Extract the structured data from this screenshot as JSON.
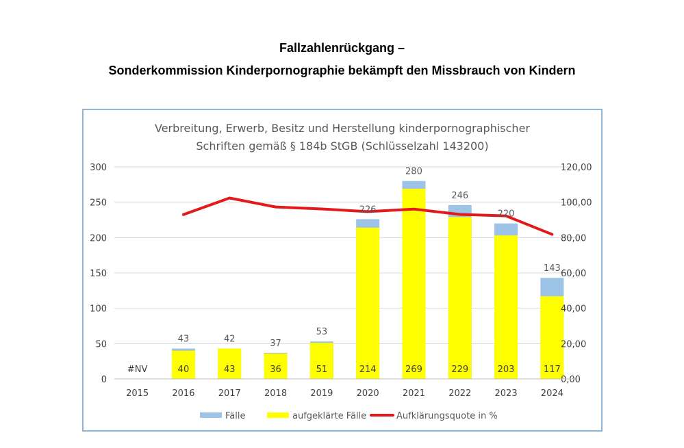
{
  "page": {
    "title_line1": "Fallzahlenrückgang –",
    "title_line2": "Sonderkommission Kinderpornographie bekämpft den Missbrauch von Kindern"
  },
  "colors": {
    "faelle": "#9dc3e6",
    "aufgeklaert": "#ffff00",
    "quote": "#e31a1c",
    "grid": "#d9d9d9",
    "frame": "#8fb4d6"
  },
  "chart_data": {
    "type": "bar",
    "title_line1": "Verbreitung, Erwerb, Besitz und Herstellung kinderpornographischer",
    "title_line2": "Schriften gemäß § 184b StGB (Schlüsselzahl 143200)",
    "categories": [
      "2015",
      "2016",
      "2017",
      "2018",
      "2019",
      "2020",
      "2021",
      "2022",
      "2023",
      "2024"
    ],
    "series": [
      {
        "name": "Fälle",
        "kind": "bar",
        "values": [
          null,
          43,
          42,
          37,
          53,
          226,
          280,
          246,
          220,
          143
        ],
        "labels": [
          "",
          "43",
          "42",
          "37",
          "53",
          "226",
          "280",
          "246",
          "220",
          "143"
        ]
      },
      {
        "name": "aufgeklärte Fälle",
        "kind": "bar",
        "values": [
          null,
          40,
          43,
          36,
          51,
          214,
          269,
          229,
          203,
          117
        ],
        "labels": [
          "#NV",
          "40",
          "43",
          "36",
          "51",
          "214",
          "269",
          "229",
          "203",
          "117"
        ]
      },
      {
        "name": "Aufklärungsquote in %",
        "kind": "line",
        "axis": "right",
        "values": [
          null,
          93.0,
          102.4,
          97.3,
          96.2,
          94.7,
          96.1,
          93.1,
          92.3,
          81.8
        ]
      }
    ],
    "y_left": {
      "min": 0,
      "max": 300,
      "ticks": [
        "0",
        "50",
        "100",
        "150",
        "200",
        "250",
        "300"
      ]
    },
    "y_right": {
      "min": 0,
      "max": 120,
      "ticks": [
        "0,00",
        "20,00",
        "40,00",
        "60,00",
        "80,00",
        "100,00",
        "120,00"
      ]
    },
    "grid": true,
    "legend_position": "bottom"
  }
}
